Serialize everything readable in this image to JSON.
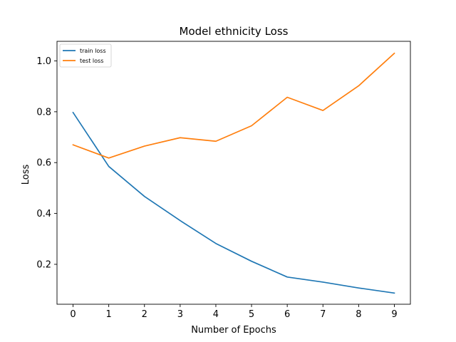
{
  "chart_data": {
    "type": "line",
    "title": "Model ethnicity Loss",
    "xlabel": "Number of Epochs",
    "ylabel": "Loss",
    "x": [
      0,
      1,
      2,
      3,
      4,
      5,
      6,
      7,
      8,
      9
    ],
    "xlim": [
      -0.45,
      9.45
    ],
    "ylim": [
      0.043,
      1.077
    ],
    "xticks": [
      0,
      1,
      2,
      3,
      4,
      5,
      6,
      7,
      8,
      9
    ],
    "yticks": [
      0.2,
      0.4,
      0.6,
      0.8,
      1.0
    ],
    "ytick_labels": [
      "0.2",
      "0.4",
      "0.6",
      "0.8",
      "1.0"
    ],
    "grid": false,
    "legend_position": "top-left",
    "series": [
      {
        "name": "train loss",
        "color": "#1f77b4",
        "values": [
          0.797,
          0.585,
          0.467,
          0.372,
          0.282,
          0.212,
          0.15,
          0.13,
          0.107,
          0.087
        ]
      },
      {
        "name": "test loss",
        "color": "#ff7f0e",
        "values": [
          0.67,
          0.618,
          0.665,
          0.698,
          0.684,
          0.745,
          0.857,
          0.805,
          0.902,
          1.03
        ]
      }
    ]
  }
}
